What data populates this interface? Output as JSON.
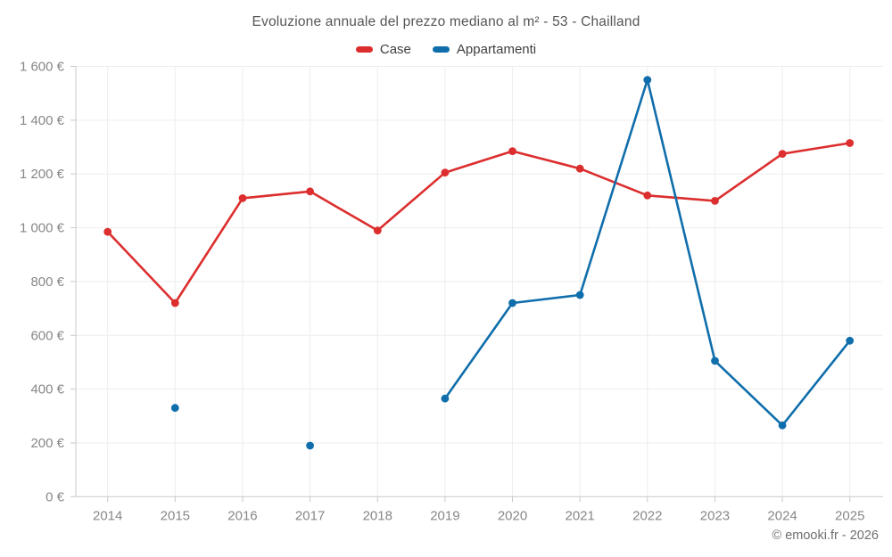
{
  "chart": {
    "title": "Evoluzione annuale del prezzo mediano al m² - 53 - Chailland",
    "attribution": "© emooki.fr - 2026"
  },
  "chart_data": {
    "type": "line",
    "title": "Evoluzione annuale del prezzo mediano al m² - 53 - Chailland",
    "categories": [
      "2014",
      "2015",
      "2016",
      "2017",
      "2018",
      "2019",
      "2020",
      "2021",
      "2022",
      "2023",
      "2024",
      "2025"
    ],
    "series": [
      {
        "name": "Case",
        "color": "#dc2e2e",
        "values": [
          985,
          720,
          1110,
          1135,
          990,
          1205,
          1285,
          1220,
          1120,
          1100,
          1275,
          1315
        ]
      },
      {
        "name": "Appartamenti",
        "color": "#0f6eab",
        "values": [
          null,
          330,
          null,
          190,
          null,
          365,
          720,
          750,
          1550,
          505,
          265,
          580
        ]
      }
    ],
    "y_ticks": [
      {
        "value": 0,
        "label": "0 €"
      },
      {
        "value": 200,
        "label": "200 €"
      },
      {
        "value": 400,
        "label": "400 €"
      },
      {
        "value": 600,
        "label": "600 €"
      },
      {
        "value": 800,
        "label": "800 €"
      },
      {
        "value": 1000,
        "label": "1 000 €"
      },
      {
        "value": 1200,
        "label": "1 200 €"
      },
      {
        "value": 1400,
        "label": "1 400 €"
      },
      {
        "value": 1600,
        "label": "1 600 €"
      }
    ],
    "ylim": [
      0,
      1600
    ],
    "grid": true,
    "legend_position": "top",
    "unit": "€"
  }
}
